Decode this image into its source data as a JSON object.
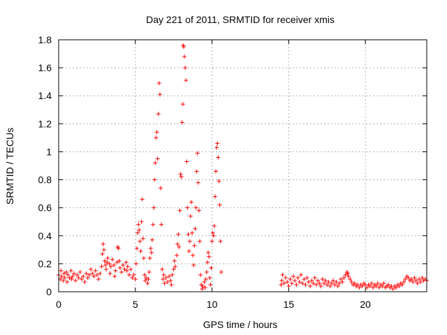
{
  "chart_data": {
    "type": "scatter",
    "title": "Day 221 of 2011, SRMTID for receiver xmis",
    "xlabel": "GPS time / hours",
    "ylabel": "SRMTID / TECUs",
    "xlim": [
      0,
      24
    ],
    "ylim": [
      0,
      1.8
    ],
    "xticks": [
      0,
      5,
      10,
      15,
      20
    ],
    "xtick_labels": [
      "0",
      "5",
      "10",
      "15",
      "20"
    ],
    "yticks": [
      0,
      0.2,
      0.4,
      0.6,
      0.8,
      1,
      1.2,
      1.4,
      1.6,
      1.8
    ],
    "ytick_labels": [
      "0",
      "0.2",
      "0.4",
      "0.6",
      "0.8",
      "1",
      "1.2",
      "1.4",
      "1.6",
      "1.8"
    ],
    "grid": true,
    "marker": "plus",
    "color": "#ff0000",
    "series": [
      {
        "name": "SRMTID",
        "points": [
          [
            0.0,
            0.12
          ],
          [
            0.1,
            0.09
          ],
          [
            0.15,
            0.15
          ],
          [
            0.2,
            0.11
          ],
          [
            0.3,
            0.08
          ],
          [
            0.35,
            0.13
          ],
          [
            0.4,
            0.1
          ],
          [
            0.5,
            0.14
          ],
          [
            0.55,
            0.07
          ],
          [
            0.6,
            0.12
          ],
          [
            0.7,
            0.1
          ],
          [
            0.8,
            0.15
          ],
          [
            0.85,
            0.09
          ],
          [
            0.9,
            0.11
          ],
          [
            1.0,
            0.13
          ],
          [
            1.1,
            0.08
          ],
          [
            1.2,
            0.12
          ],
          [
            1.3,
            0.1
          ],
          [
            1.4,
            0.14
          ],
          [
            1.5,
            0.09
          ],
          [
            1.6,
            0.11
          ],
          [
            1.7,
            0.07
          ],
          [
            1.8,
            0.13
          ],
          [
            1.9,
            0.1
          ],
          [
            2.0,
            0.12
          ],
          [
            2.1,
            0.16
          ],
          [
            2.2,
            0.13
          ],
          [
            2.3,
            0.11
          ],
          [
            2.4,
            0.15
          ],
          [
            2.5,
            0.12
          ],
          [
            2.6,
            0.09
          ],
          [
            2.7,
            0.13
          ],
          [
            2.8,
            0.18
          ],
          [
            2.85,
            0.27
          ],
          [
            2.9,
            0.34
          ],
          [
            2.95,
            0.3
          ],
          [
            3.0,
            0.22
          ],
          [
            3.05,
            0.19
          ],
          [
            3.1,
            0.16
          ],
          [
            3.15,
            0.21
          ],
          [
            3.2,
            0.24
          ],
          [
            3.3,
            0.2
          ],
          [
            3.35,
            0.13
          ],
          [
            3.4,
            0.18
          ],
          [
            3.5,
            0.23
          ],
          [
            3.6,
            0.19
          ],
          [
            3.65,
            0.11
          ],
          [
            3.7,
            0.15
          ],
          [
            3.8,
            0.21
          ],
          [
            3.85,
            0.32
          ],
          [
            3.9,
            0.31
          ],
          [
            3.95,
            0.22
          ],
          [
            4.0,
            0.17
          ],
          [
            4.1,
            0.14
          ],
          [
            4.2,
            0.19
          ],
          [
            4.3,
            0.16
          ],
          [
            4.4,
            0.21
          ],
          [
            4.45,
            0.15
          ],
          [
            4.5,
            0.18
          ],
          [
            4.6,
            0.12
          ],
          [
            4.7,
            0.16
          ],
          [
            4.8,
            0.1
          ],
          [
            4.9,
            0.12
          ],
          [
            5.0,
            0.09
          ],
          [
            5.05,
            0.2
          ],
          [
            5.1,
            0.31
          ],
          [
            5.15,
            0.42
          ],
          [
            5.2,
            0.48
          ],
          [
            5.25,
            0.44
          ],
          [
            5.3,
            0.36
          ],
          [
            5.35,
            0.29
          ],
          [
            5.4,
            0.5
          ],
          [
            5.45,
            0.66
          ],
          [
            5.5,
            0.38
          ],
          [
            5.55,
            0.24
          ],
          [
            5.6,
            0.12
          ],
          [
            5.65,
            0.08
          ],
          [
            5.7,
            0.1
          ],
          [
            5.8,
            0.06
          ],
          [
            5.85,
            0.09
          ],
          [
            5.9,
            0.14
          ],
          [
            5.95,
            0.24
          ],
          [
            6.0,
            0.31
          ],
          [
            6.05,
            0.28
          ],
          [
            6.1,
            0.37
          ],
          [
            6.15,
            0.48
          ],
          [
            6.2,
            0.6
          ],
          [
            6.25,
            0.8
          ],
          [
            6.3,
            0.92
          ],
          [
            6.35,
            1.1
          ],
          [
            6.4,
            1.14
          ],
          [
            6.45,
            0.95
          ],
          [
            6.5,
            1.27
          ],
          [
            6.55,
            1.49
          ],
          [
            6.6,
            1.41
          ],
          [
            6.65,
            0.74
          ],
          [
            6.7,
            0.48
          ],
          [
            6.75,
            0.16
          ],
          [
            6.8,
            0.09
          ],
          [
            6.85,
            0.12
          ],
          [
            6.9,
            0.06
          ],
          [
            7.0,
            0.1
          ],
          [
            7.1,
            0.07
          ],
          [
            7.2,
            0.11
          ],
          [
            7.3,
            0.08
          ],
          [
            7.35,
            0.05
          ],
          [
            7.4,
            0.12
          ],
          [
            7.5,
            0.16
          ],
          [
            7.55,
            0.22
          ],
          [
            7.6,
            0.18
          ],
          [
            7.7,
            0.26
          ],
          [
            7.75,
            0.34
          ],
          [
            7.8,
            0.41
          ],
          [
            7.85,
            0.32
          ],
          [
            7.9,
            0.58
          ],
          [
            7.95,
            0.84
          ],
          [
            8.0,
            0.82
          ],
          [
            8.05,
            1.21
          ],
          [
            8.1,
            1.34
          ],
          [
            8.12,
            1.76
          ],
          [
            8.15,
            1.75
          ],
          [
            8.2,
            1.68
          ],
          [
            8.25,
            1.6
          ],
          [
            8.3,
            1.51
          ],
          [
            8.35,
            0.93
          ],
          [
            8.4,
            0.6
          ],
          [
            8.45,
            0.41
          ],
          [
            8.5,
            0.29
          ],
          [
            8.55,
            0.36
          ],
          [
            8.6,
            0.54
          ],
          [
            8.65,
            0.64
          ],
          [
            8.7,
            0.42
          ],
          [
            8.75,
            0.26
          ],
          [
            8.8,
            0.19
          ],
          [
            8.85,
            0.33
          ],
          [
            8.9,
            0.45
          ],
          [
            8.95,
            0.6
          ],
          [
            9.0,
            0.86
          ],
          [
            9.05,
            0.99
          ],
          [
            9.1,
            0.78
          ],
          [
            9.15,
            0.58
          ],
          [
            9.2,
            0.36
          ],
          [
            9.25,
            0.12
          ],
          [
            9.3,
            0.05
          ],
          [
            9.35,
            0.02
          ],
          [
            9.4,
            0.04
          ],
          [
            9.5,
            0.07
          ],
          [
            9.55,
            0.03
          ],
          [
            9.6,
            0.09
          ],
          [
            9.65,
            0.14
          ],
          [
            9.7,
            0.21
          ],
          [
            9.75,
            0.28
          ],
          [
            9.8,
            0.25
          ],
          [
            9.85,
            0.1
          ],
          [
            9.9,
            0.05
          ],
          [
            9.95,
            0.17
          ],
          [
            10.0,
            0.36
          ],
          [
            10.05,
            0.42
          ],
          [
            10.1,
            0.4
          ],
          [
            10.15,
            0.47
          ],
          [
            10.2,
            0.68
          ],
          [
            10.25,
            0.86
          ],
          [
            10.3,
            1.03
          ],
          [
            10.35,
            1.06
          ],
          [
            10.4,
            0.96
          ],
          [
            10.45,
            0.79
          ],
          [
            10.5,
            0.62
          ],
          [
            10.55,
            0.36
          ],
          [
            10.6,
            0.14
          ],
          [
            14.5,
            0.05
          ],
          [
            14.55,
            0.08
          ],
          [
            14.6,
            0.12
          ],
          [
            14.7,
            0.06
          ],
          [
            14.8,
            0.1
          ],
          [
            14.9,
            0.07
          ],
          [
            15.0,
            0.04
          ],
          [
            15.1,
            0.09
          ],
          [
            15.2,
            0.06
          ],
          [
            15.3,
            0.11
          ],
          [
            15.4,
            0.08
          ],
          [
            15.5,
            0.05
          ],
          [
            15.6,
            0.1
          ],
          [
            15.7,
            0.07
          ],
          [
            15.8,
            0.12
          ],
          [
            15.9,
            0.06
          ],
          [
            16.0,
            0.09
          ],
          [
            16.1,
            0.05
          ],
          [
            16.2,
            0.1
          ],
          [
            16.3,
            0.07
          ],
          [
            16.4,
            0.04
          ],
          [
            16.5,
            0.08
          ],
          [
            16.6,
            0.06
          ],
          [
            16.7,
            0.1
          ],
          [
            16.8,
            0.05
          ],
          [
            16.9,
            0.08
          ],
          [
            17.0,
            0.06
          ],
          [
            17.1,
            0.04
          ],
          [
            17.2,
            0.09
          ],
          [
            17.3,
            0.06
          ],
          [
            17.4,
            0.08
          ],
          [
            17.5,
            0.05
          ],
          [
            17.6,
            0.07
          ],
          [
            17.7,
            0.04
          ],
          [
            17.8,
            0.06
          ],
          [
            17.9,
            0.08
          ],
          [
            18.0,
            0.05
          ],
          [
            18.1,
            0.07
          ],
          [
            18.2,
            0.04
          ],
          [
            18.3,
            0.06
          ],
          [
            18.4,
            0.09
          ],
          [
            18.5,
            0.07
          ],
          [
            18.6,
            0.1
          ],
          [
            18.7,
            0.12
          ],
          [
            18.8,
            0.14
          ],
          [
            18.85,
            0.13
          ],
          [
            18.9,
            0.11
          ],
          [
            19.0,
            0.09
          ],
          [
            19.1,
            0.07
          ],
          [
            19.2,
            0.05
          ],
          [
            19.3,
            0.06
          ],
          [
            19.4,
            0.04
          ],
          [
            19.5,
            0.05
          ],
          [
            19.6,
            0.03
          ],
          [
            19.7,
            0.05
          ],
          [
            19.8,
            0.04
          ],
          [
            19.9,
            0.06
          ],
          [
            20.0,
            0.05
          ],
          [
            20.1,
            0.03
          ],
          [
            20.2,
            0.05
          ],
          [
            20.3,
            0.04
          ],
          [
            20.4,
            0.06
          ],
          [
            20.5,
            0.03
          ],
          [
            20.6,
            0.05
          ],
          [
            20.7,
            0.04
          ],
          [
            20.8,
            0.06
          ],
          [
            20.9,
            0.03
          ],
          [
            21.0,
            0.05
          ],
          [
            21.1,
            0.04
          ],
          [
            21.2,
            0.06
          ],
          [
            21.3,
            0.03
          ],
          [
            21.4,
            0.04
          ],
          [
            21.5,
            0.05
          ],
          [
            21.6,
            0.03
          ],
          [
            21.7,
            0.04
          ],
          [
            21.8,
            0.02
          ],
          [
            21.9,
            0.04
          ],
          [
            22.0,
            0.03
          ],
          [
            22.1,
            0.05
          ],
          [
            22.2,
            0.04
          ],
          [
            22.3,
            0.06
          ],
          [
            22.4,
            0.05
          ],
          [
            22.5,
            0.07
          ],
          [
            22.6,
            0.09
          ],
          [
            22.7,
            0.11
          ],
          [
            22.8,
            0.1
          ],
          [
            22.9,
            0.08
          ],
          [
            23.0,
            0.09
          ],
          [
            23.1,
            0.07
          ],
          [
            23.2,
            0.1
          ],
          [
            23.3,
            0.08
          ],
          [
            23.4,
            0.06
          ],
          [
            23.5,
            0.09
          ],
          [
            23.6,
            0.07
          ],
          [
            23.7,
            0.1
          ],
          [
            23.8,
            0.08
          ],
          [
            23.9,
            0.09
          ],
          [
            24.0,
            0.08
          ]
        ]
      }
    ]
  }
}
